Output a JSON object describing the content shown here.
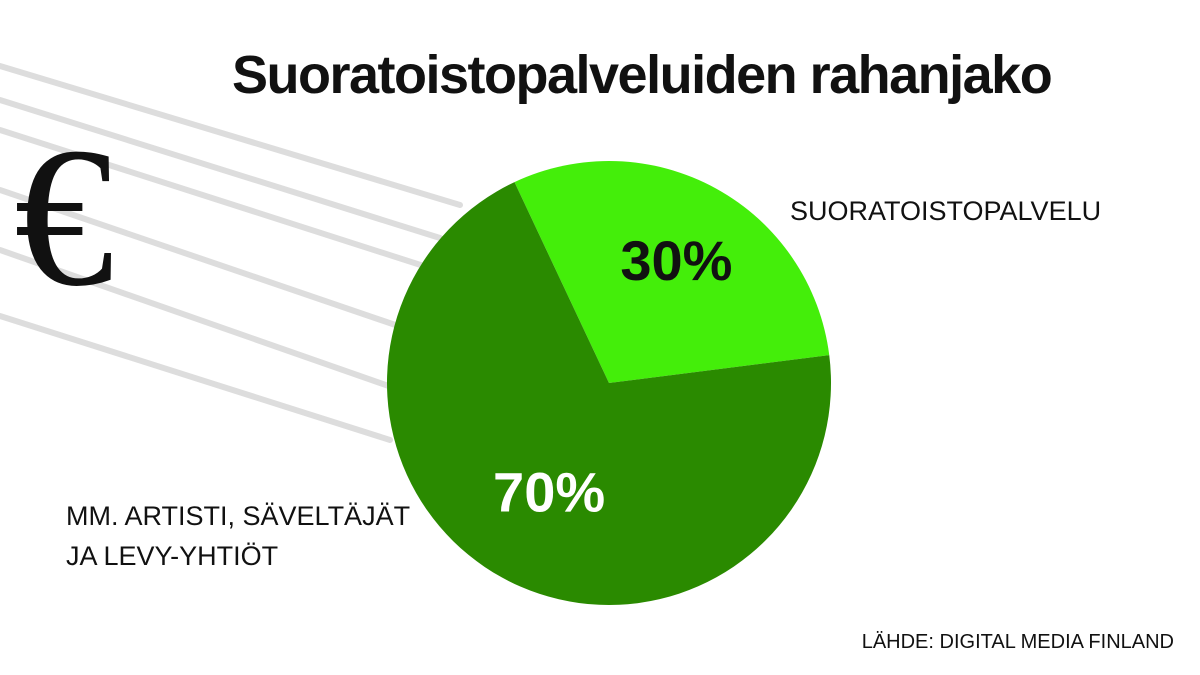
{
  "chart_data": {
    "type": "pie",
    "title": "Suoratoistopalveluiden rahanjako",
    "slices": [
      {
        "label": "SUORATOISTOPALVELU",
        "value": 30,
        "value_label": "30%",
        "color": "#44ee0a",
        "text_color": "#111111"
      },
      {
        "label_lines": [
          "MM. ARTISTI, SÄVELTÄJÄT",
          "JA LEVY-YHTIÖT"
        ],
        "value": 70,
        "value_label": "70%",
        "color": "#2a8a00",
        "text_color": "#ffffff"
      }
    ],
    "source": "LÄHDE: DIGITAL MEDIA FINLAND"
  },
  "decoration": {
    "symbol": "€",
    "icon": "euro-icon",
    "streak_color": "#dddddd"
  }
}
